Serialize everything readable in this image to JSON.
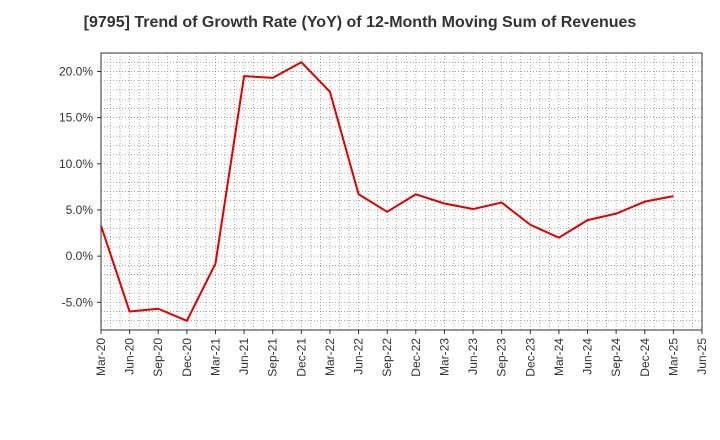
{
  "chart_data": {
    "type": "line",
    "title": "[9795]  Trend of Growth Rate (YoY) of 12-Month Moving Sum of Revenues",
    "xlabel": "",
    "ylabel": "",
    "x_ticks": [
      "Mar-20",
      "Jun-20",
      "Sep-20",
      "Dec-20",
      "Mar-21",
      "Jun-21",
      "Sep-21",
      "Dec-21",
      "Mar-22",
      "Jun-22",
      "Sep-22",
      "Dec-22",
      "Mar-23",
      "Jun-23",
      "Sep-23",
      "Dec-23",
      "Mar-24",
      "Jun-24",
      "Sep-24",
      "Dec-24",
      "Mar-25",
      "Jun-25"
    ],
    "y_ticks": [
      -5.0,
      0.0,
      5.0,
      10.0,
      15.0,
      20.0
    ],
    "y_tick_labels": [
      "-5.0%",
      "0.0%",
      "5.0%",
      "10.0%",
      "15.0%",
      "20.0%"
    ],
    "ylim": [
      -8.0,
      22.0
    ],
    "grid": true,
    "series": [
      {
        "color": "#e00000",
        "x": [
          "Mar-20",
          "Jun-20",
          "Sep-20",
          "Dec-20",
          "Mar-21",
          "Jun-21",
          "Sep-21",
          "Dec-21",
          "Mar-22",
          "Jun-22",
          "Sep-22",
          "Dec-22",
          "Mar-23",
          "Jun-23",
          "Sep-23",
          "Dec-23",
          "Mar-24",
          "Jun-24",
          "Sep-24",
          "Dec-24",
          "Mar-25"
        ],
        "values": [
          3.3,
          -6.0,
          -5.7,
          -7.0,
          -0.8,
          19.5,
          19.3,
          21.0,
          17.8,
          6.7,
          4.8,
          6.7,
          5.7,
          5.1,
          5.8,
          3.4,
          2.0,
          3.9,
          4.6,
          5.9,
          6.5
        ]
      }
    ]
  }
}
